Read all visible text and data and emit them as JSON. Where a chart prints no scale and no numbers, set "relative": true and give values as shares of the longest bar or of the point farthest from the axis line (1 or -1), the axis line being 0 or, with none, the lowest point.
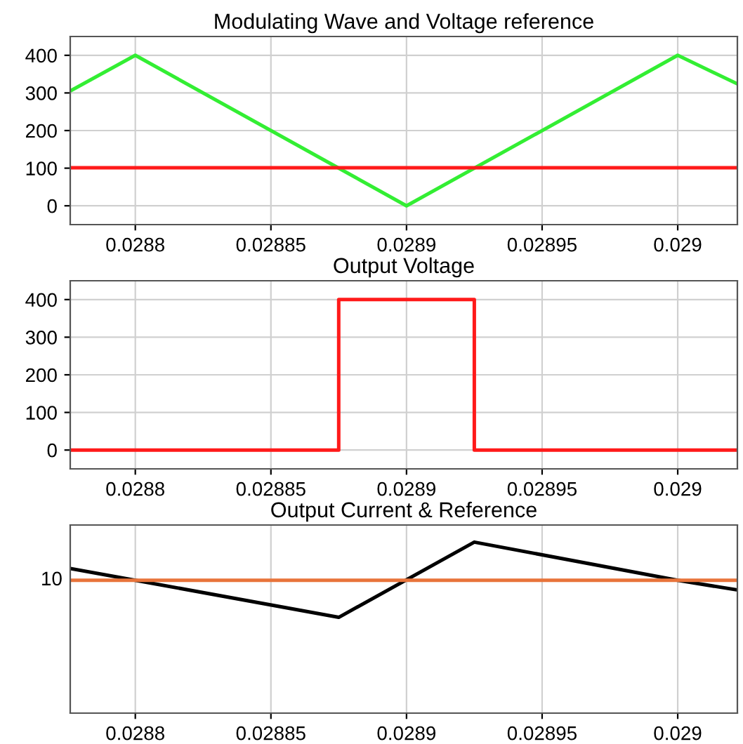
{
  "chart_data": [
    {
      "type": "line",
      "title": "Modulating Wave and Voltage reference",
      "xlim": [
        0.028776,
        0.029022
      ],
      "xticks": [
        0.0288,
        0.02885,
        0.0289,
        0.02895,
        0.029
      ],
      "ylim": [
        -50,
        450
      ],
      "yticks": [
        0,
        100,
        200,
        300,
        400
      ],
      "grid": true,
      "series": [
        {
          "color": "#33ee33",
          "x": [
            0.028776,
            0.0288,
            0.0289,
            0.029,
            0.029022
          ],
          "values": [
            305,
            400,
            0,
            400,
            324
          ]
        },
        {
          "color": "#ff1a1a",
          "x": [
            0.028776,
            0.029022
          ],
          "values": [
            101,
            101
          ]
        }
      ]
    },
    {
      "type": "line",
      "title": "Output Voltage",
      "xlim": [
        0.028776,
        0.029022
      ],
      "xticks": [
        0.0288,
        0.02885,
        0.0289,
        0.02895,
        0.029
      ],
      "ylim": [
        -50,
        450
      ],
      "yticks": [
        0,
        100,
        200,
        300,
        400
      ],
      "grid": true,
      "series": [
        {
          "color": "#ff1a1a",
          "x": [
            0.028776,
            0.028875,
            0.028875,
            0.028925,
            0.028925,
            0.029022
          ],
          "values": [
            0,
            0,
            400,
            400,
            0,
            0
          ]
        }
      ]
    },
    {
      "type": "line",
      "title": "Output Current & Reference",
      "relative": true,
      "xlim": [
        0.028776,
        0.029022
      ],
      "xticks": [
        0.0288,
        0.02885,
        0.0289,
        0.02895,
        0.029
      ],
      "grid": "x",
      "annotations": [
        {
          "text": "10",
          "x": 0.028776,
          "y": 0.777
        }
      ],
      "series": [
        {
          "color": "#000000",
          "x": [
            0.028776,
            0.0288,
            0.028875,
            0.028925,
            0.029,
            0.029022
          ],
          "values": [
            0.846,
            0.777,
            0.56,
            1,
            0.777,
            0.72
          ]
        },
        {
          "color": "#e8743b",
          "x": [
            0.028776,
            0.029022
          ],
          "values": [
            0.777,
            0.777
          ]
        }
      ]
    }
  ]
}
